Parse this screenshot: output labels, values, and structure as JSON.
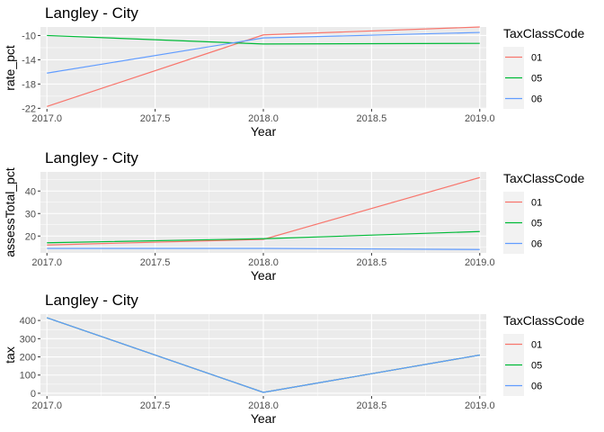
{
  "legend": {
    "title": "TaxClassCode",
    "entries": [
      {
        "label": "01",
        "color": "#F8766D"
      },
      {
        "label": "05",
        "color": "#00BA38"
      },
      {
        "label": "06",
        "color": "#619CFF"
      }
    ]
  },
  "chart_data": [
    {
      "type": "line",
      "title": "Langley - City",
      "xlabel": "Year",
      "ylabel": "rate_pct",
      "xlim": [
        2016.97,
        2019.03
      ],
      "ylim": [
        -22.1,
        -8.6
      ],
      "xticks": [
        2017.0,
        2017.5,
        2018.0,
        2018.5,
        2019.0
      ],
      "xtick_labels": [
        "2017.0",
        "2017.5",
        "2018.0",
        "2018.5",
        "2019.0"
      ],
      "yticks": [
        -22,
        -18,
        -14,
        -10
      ],
      "ytick_labels": [
        "-22",
        "-18",
        "-14",
        "-10"
      ],
      "grid": true,
      "legend_position": "right",
      "series": [
        {
          "name": "01",
          "color": "#F8766D",
          "x": [
            2017.0,
            2018.0,
            2019.0
          ],
          "y": [
            -21.7,
            -9.9,
            -8.6
          ]
        },
        {
          "name": "05",
          "color": "#00BA38",
          "x": [
            2017.0,
            2018.0,
            2019.0
          ],
          "y": [
            -10.0,
            -11.4,
            -11.3
          ]
        },
        {
          "name": "06",
          "color": "#619CFF",
          "x": [
            2017.0,
            2018.0,
            2019.0
          ],
          "y": [
            -16.2,
            -10.4,
            -9.5
          ]
        }
      ]
    },
    {
      "type": "line",
      "title": "Langley - City",
      "xlabel": "Year",
      "ylabel": "assessTotal_pct",
      "xlim": [
        2016.97,
        2019.03
      ],
      "ylim": [
        12.5,
        48.5
      ],
      "xticks": [
        2017.0,
        2017.5,
        2018.0,
        2018.5,
        2019.0
      ],
      "xtick_labels": [
        "2017.0",
        "2017.5",
        "2018.0",
        "2018.5",
        "2019.0"
      ],
      "yticks": [
        20,
        30,
        40
      ],
      "ytick_labels": [
        "20",
        "30",
        "40"
      ],
      "grid": true,
      "legend_position": "right",
      "series": [
        {
          "name": "01",
          "color": "#F8766D",
          "x": [
            2017.0,
            2018.0,
            2019.0
          ],
          "y": [
            16.0,
            18.5,
            46.0
          ]
        },
        {
          "name": "05",
          "color": "#00BA38",
          "x": [
            2017.0,
            2018.0,
            2019.0
          ],
          "y": [
            17.0,
            18.8,
            22.0
          ]
        },
        {
          "name": "06",
          "color": "#619CFF",
          "x": [
            2017.0,
            2018.0,
            2019.0
          ],
          "y": [
            14.5,
            14.5,
            14.0
          ]
        }
      ]
    },
    {
      "type": "line",
      "title": "Langley - City",
      "xlabel": "Year",
      "ylabel": "tax",
      "xlim": [
        2016.97,
        2019.03
      ],
      "ylim": [
        -15,
        435
      ],
      "xticks": [
        2017.0,
        2017.5,
        2018.0,
        2018.5,
        2019.0
      ],
      "xtick_labels": [
        "2017.0",
        "2017.5",
        "2018.0",
        "2018.5",
        "2019.0"
      ],
      "yticks": [
        0,
        100,
        200,
        300,
        400
      ],
      "ytick_labels": [
        "0",
        "100",
        "200",
        "300",
        "400"
      ],
      "grid": true,
      "legend_position": "right",
      "series": [
        {
          "name": "01",
          "color": "#F8766D",
          "x": [
            2017.0,
            2018.0,
            2019.0
          ],
          "y": [
            415,
            5,
            210
          ]
        },
        {
          "name": "05",
          "color": "#00BA38",
          "x": [
            2017.0,
            2018.0,
            2019.0
          ],
          "y": [
            415,
            5,
            210
          ]
        },
        {
          "name": "06",
          "color": "#619CFF",
          "x": [
            2017.0,
            2018.0,
            2019.0
          ],
          "y": [
            415,
            5,
            210
          ]
        }
      ]
    }
  ]
}
